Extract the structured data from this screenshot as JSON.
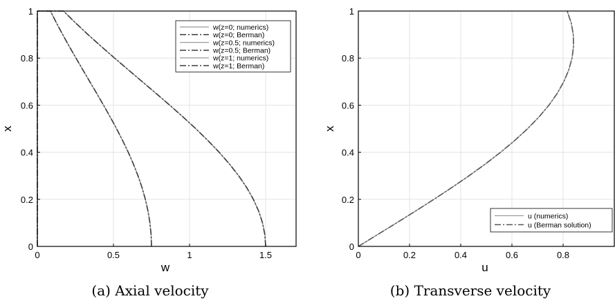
{
  "chart_data": [
    {
      "type": "line",
      "caption": "(a) Axial velocity",
      "xlabel": "w",
      "ylabel": "x",
      "xlim": [
        0,
        1.7
      ],
      "ylim": [
        0,
        1
      ],
      "xticks": [
        0,
        0.5,
        1,
        1.5
      ],
      "xtick_labels": [
        "0",
        "0.5",
        "1",
        "1.5"
      ],
      "yticks": [
        0,
        0.2,
        0.4,
        0.6,
        0.8,
        1
      ],
      "ytick_labels": [
        "0",
        "0.2",
        "0.4",
        "0.6",
        "0.8",
        "1"
      ],
      "grid": true,
      "legend_position": "top-right",
      "series": [
        {
          "name": "w(z=0; numerics)",
          "style": "solid",
          "color": "#9a9a9a",
          "x": [
            0,
            0,
            0,
            0,
            0,
            0,
            0,
            0,
            0,
            0,
            0,
            0,
            0,
            0,
            0,
            0,
            0,
            0,
            0,
            0,
            0
          ],
          "y": [
            0,
            0.05,
            0.1,
            0.15,
            0.2,
            0.25,
            0.3,
            0.35,
            0.4,
            0.45,
            0.5,
            0.55,
            0.6,
            0.65,
            0.7,
            0.75,
            0.8,
            0.85,
            0.9,
            0.95,
            1
          ]
        },
        {
          "name": "w(z=0; Berman)",
          "style": "dashdot",
          "color": "#3a3a3a",
          "x": [
            0,
            0,
            0,
            0,
            0,
            0,
            0,
            0,
            0,
            0,
            0,
            0,
            0,
            0,
            0,
            0,
            0,
            0,
            0,
            0,
            0
          ],
          "y": [
            0,
            0.05,
            0.1,
            0.15,
            0.2,
            0.25,
            0.3,
            0.35,
            0.4,
            0.45,
            0.5,
            0.55,
            0.6,
            0.65,
            0.7,
            0.75,
            0.8,
            0.85,
            0.9,
            0.95,
            1
          ]
        },
        {
          "name": "w(z=0.5; numerics)",
          "style": "solid",
          "color": "#9a9a9a",
          "x": [
            0.75,
            0.7474,
            0.7397,
            0.7271,
            0.7097,
            0.6877,
            0.6614,
            0.6311,
            0.5972,
            0.5602,
            0.5205,
            0.4786,
            0.4349,
            0.3901,
            0.3446,
            0.299,
            0.2538,
            0.2095,
            0.1664,
            0.1251,
            0.0859,
            0.0491,
            0.0152,
            0
          ],
          "y": [
            0,
            0.05,
            0.1,
            0.15,
            0.2,
            0.25,
            0.3,
            0.35,
            0.4,
            0.45,
            0.5,
            0.55,
            0.6,
            0.65,
            0.7,
            0.75,
            0.8,
            0.85,
            0.9,
            0.95,
            1,
            1,
            1,
            1
          ]
        },
        {
          "name": "w(z=0.5; Berman)",
          "style": "dashdot",
          "color": "#3a3a3a",
          "x": [
            0.75,
            0.7474,
            0.7397,
            0.7271,
            0.7097,
            0.6877,
            0.6614,
            0.6311,
            0.5972,
            0.5602,
            0.5205,
            0.4786,
            0.4349,
            0.3901,
            0.3446,
            0.299,
            0.2538,
            0.2095,
            0.1664,
            0.1251,
            0.0859,
            0.0491,
            0.0152,
            0
          ],
          "y": [
            0,
            0.05,
            0.1,
            0.15,
            0.2,
            0.25,
            0.3,
            0.35,
            0.4,
            0.45,
            0.5,
            0.55,
            0.6,
            0.65,
            0.7,
            0.75,
            0.8,
            0.85,
            0.9,
            0.95,
            1,
            1,
            1,
            1
          ]
        },
        {
          "name": "w(z=1; numerics)",
          "style": "solid",
          "color": "#9a9a9a",
          "x": [
            1.5,
            1.4948,
            1.4794,
            1.4541,
            1.4194,
            1.3755,
            1.3229,
            1.2622,
            1.1944,
            1.1204,
            1.041,
            0.9572,
            0.8698,
            0.7801,
            0.6893,
            0.5981,
            0.5076,
            0.419,
            0.3328,
            0.2502,
            0.1718,
            0.0982,
            0.0304,
            0
          ],
          "y": [
            0,
            0.05,
            0.1,
            0.15,
            0.2,
            0.25,
            0.3,
            0.35,
            0.4,
            0.45,
            0.5,
            0.55,
            0.6,
            0.65,
            0.7,
            0.75,
            0.8,
            0.85,
            0.9,
            0.95,
            1,
            1,
            1,
            1
          ]
        },
        {
          "name": "w(z=1; Berman)",
          "style": "dashdot",
          "color": "#3a3a3a",
          "x": [
            1.5,
            1.4948,
            1.4794,
            1.4541,
            1.4194,
            1.3755,
            1.3229,
            1.2622,
            1.1944,
            1.1204,
            1.041,
            0.9572,
            0.8698,
            0.7801,
            0.6893,
            0.5981,
            0.5076,
            0.419,
            0.3328,
            0.2502,
            0.1718,
            0.0982,
            0.0304,
            0
          ],
          "y": [
            0,
            0.05,
            0.1,
            0.15,
            0.2,
            0.25,
            0.3,
            0.35,
            0.4,
            0.45,
            0.5,
            0.55,
            0.6,
            0.65,
            0.7,
            0.75,
            0.8,
            0.85,
            0.9,
            0.95,
            1,
            1,
            1,
            1
          ]
        }
      ]
    },
    {
      "type": "line",
      "caption": "(b) Transverse velocity",
      "xlabel": "u",
      "ylabel": "x",
      "xlim": [
        0,
        1
      ],
      "ylim": [
        0,
        1
      ],
      "xticks": [
        0,
        0.2,
        0.4,
        0.6,
        0.8
      ],
      "xtick_labels": [
        "0",
        "0.2",
        "0.4",
        "0.6",
        "0.8"
      ],
      "yticks": [
        0,
        0.2,
        0.4,
        0.6,
        0.8,
        1
      ],
      "ytick_labels": [
        "0",
        "0.2",
        "0.4",
        "0.6",
        "0.8",
        "1"
      ],
      "grid": true,
      "legend_position": "bottom-right",
      "series": [
        {
          "name": "u (numerics)",
          "style": "solid",
          "color": "#9a9a9a",
          "x": [
            0,
            0.0749,
            0.1495,
            0.2231,
            0.2952,
            0.3652,
            0.4323,
            0.4961,
            0.5558,
            0.611,
            0.6611,
            0.7058,
            0.7445,
            0.7769,
            0.8028,
            0.8222,
            0.8348,
            0.8407,
            0.8398,
            0.8316,
            0.8158
          ],
          "y": [
            0,
            0.05,
            0.1,
            0.15,
            0.2,
            0.25,
            0.3,
            0.35,
            0.4,
            0.45,
            0.5,
            0.55,
            0.6,
            0.65,
            0.7,
            0.75,
            0.8,
            0.85,
            0.9,
            0.95,
            1
          ]
        },
        {
          "name": "u (Berman solution)",
          "style": "dashdot",
          "color": "#555555",
          "x": [
            0,
            0.0749,
            0.1495,
            0.2231,
            0.2952,
            0.3652,
            0.4323,
            0.4961,
            0.5558,
            0.611,
            0.6611,
            0.7058,
            0.7445,
            0.7769,
            0.8028,
            0.8222,
            0.8348,
            0.8407,
            0.8398,
            0.8316,
            0.8158
          ],
          "y": [
            0,
            0.05,
            0.1,
            0.15,
            0.2,
            0.25,
            0.3,
            0.35,
            0.4,
            0.45,
            0.5,
            0.55,
            0.6,
            0.65,
            0.7,
            0.75,
            0.8,
            0.85,
            0.9,
            0.95,
            1
          ]
        }
      ]
    }
  ]
}
